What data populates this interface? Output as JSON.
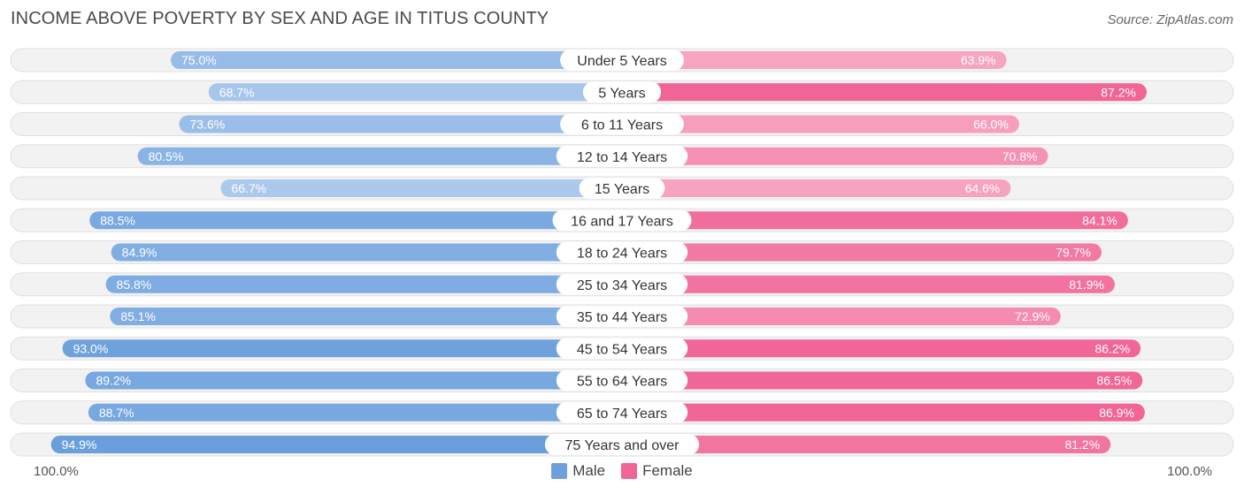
{
  "title": "INCOME ABOVE POVERTY BY SEX AND AGE IN TITUS COUNTY",
  "source": "Source: ZipAtlas.com",
  "axis": {
    "left_label": "100.0%",
    "right_label": "100.0%"
  },
  "legend": [
    {
      "name": "Male",
      "color": "#6ea0dc"
    },
    {
      "name": "Female",
      "color": "#f06595"
    }
  ],
  "chart_data": {
    "type": "bar",
    "orientation": "horizontal-diverging",
    "title": "INCOME ABOVE POVERTY BY SEX AND AGE IN TITUS COUNTY",
    "xlim": [
      0,
      100
    ],
    "unit": "%",
    "categories": [
      "Under 5 Years",
      "5 Years",
      "6 to 11 Years",
      "12 to 14 Years",
      "15 Years",
      "16 and 17 Years",
      "18 to 24 Years",
      "25 to 34 Years",
      "35 to 44 Years",
      "45 to 54 Years",
      "55 to 64 Years",
      "65 to 74 Years",
      "75 Years and over"
    ],
    "series": [
      {
        "name": "Male",
        "values": [
          75.0,
          68.7,
          73.6,
          80.5,
          66.7,
          88.5,
          84.9,
          85.8,
          85.1,
          93.0,
          89.2,
          88.7,
          94.9
        ]
      },
      {
        "name": "Female",
        "values": [
          63.9,
          87.2,
          66.0,
          70.8,
          64.6,
          84.1,
          79.7,
          81.9,
          72.9,
          86.2,
          86.5,
          86.9,
          81.2
        ]
      }
    ],
    "labels": {
      "Male": [
        "75.0%",
        "68.7%",
        "73.6%",
        "80.5%",
        "66.7%",
        "88.5%",
        "84.9%",
        "85.8%",
        "85.1%",
        "93.0%",
        "89.2%",
        "88.7%",
        "94.9%"
      ],
      "Female": [
        "63.9%",
        "87.2%",
        "66.0%",
        "70.8%",
        "64.6%",
        "84.1%",
        "79.7%",
        "81.9%",
        "72.9%",
        "86.2%",
        "86.5%",
        "86.9%",
        "81.2%"
      ]
    }
  }
}
